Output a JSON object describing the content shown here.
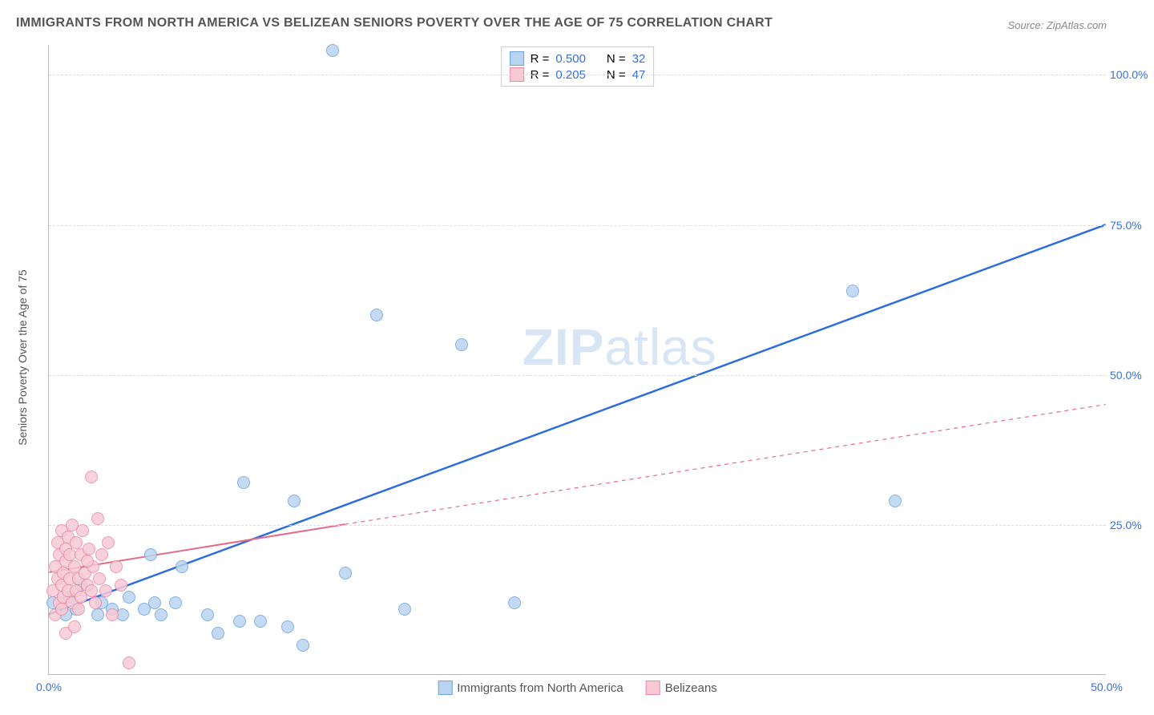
{
  "title": "IMMIGRANTS FROM NORTH AMERICA VS BELIZEAN SENIORS POVERTY OVER THE AGE OF 75 CORRELATION CHART",
  "source": "Source: ZipAtlas.com",
  "watermark_zip": "ZIP",
  "watermark_atlas": "atlas",
  "chart": {
    "type": "scatter",
    "yaxis_label": "Seniors Poverty Over the Age of 75",
    "background_color": "#ffffff",
    "grid_color": "#dddddd",
    "axis_color": "#bbbbbb",
    "xlim": [
      0,
      50
    ],
    "ylim": [
      0,
      105
    ],
    "xticks": [
      {
        "value": 0,
        "label": "0.0%",
        "color": "#3670d6"
      },
      {
        "value": 50,
        "label": "50.0%",
        "color": "#3670d6"
      }
    ],
    "yticks": [
      {
        "value": 25,
        "label": "25.0%",
        "color": "#3670d6"
      },
      {
        "value": 50,
        "label": "50.0%",
        "color": "#3670d6"
      },
      {
        "value": 75,
        "label": "75.0%",
        "color": "#3670d6"
      },
      {
        "value": 100,
        "label": "100.0%",
        "color": "#3670d6"
      }
    ],
    "marker_radius": 8,
    "marker_border_width": 1,
    "series": {
      "blue": {
        "label": "Immigrants from North America",
        "fill_color": "#b9d4f0",
        "stroke_color": "#6ea3e0",
        "trend_color": "#2d6cdf",
        "trend_width": 2.5,
        "trend_dash": "none",
        "trend_extrap_dash": "none",
        "R": "0.500",
        "N": "32",
        "trend_start": {
          "x": 0,
          "y": 10
        },
        "trend_end": {
          "x": 50,
          "y": 75
        },
        "points": [
          {
            "x": 0.2,
            "y": 12
          },
          {
            "x": 0.8,
            "y": 10
          },
          {
            "x": 1.0,
            "y": 13
          },
          {
            "x": 1.3,
            "y": 11
          },
          {
            "x": 1.5,
            "y": 15
          },
          {
            "x": 2.3,
            "y": 10
          },
          {
            "x": 2.5,
            "y": 12
          },
          {
            "x": 3.0,
            "y": 11
          },
          {
            "x": 3.5,
            "y": 10
          },
          {
            "x": 3.8,
            "y": 13
          },
          {
            "x": 4.5,
            "y": 11
          },
          {
            "x": 4.8,
            "y": 20
          },
          {
            "x": 5.0,
            "y": 12
          },
          {
            "x": 5.3,
            "y": 10
          },
          {
            "x": 6.0,
            "y": 12
          },
          {
            "x": 6.3,
            "y": 18
          },
          {
            "x": 7.5,
            "y": 10
          },
          {
            "x": 8.0,
            "y": 7
          },
          {
            "x": 9.0,
            "y": 9
          },
          {
            "x": 9.2,
            "y": 32
          },
          {
            "x": 10.0,
            "y": 9
          },
          {
            "x": 11.3,
            "y": 8
          },
          {
            "x": 11.6,
            "y": 29
          },
          {
            "x": 12.0,
            "y": 5
          },
          {
            "x": 13.4,
            "y": 104
          },
          {
            "x": 14.0,
            "y": 17
          },
          {
            "x": 15.5,
            "y": 60
          },
          {
            "x": 16.8,
            "y": 11
          },
          {
            "x": 19.5,
            "y": 55
          },
          {
            "x": 22.0,
            "y": 12
          },
          {
            "x": 38.0,
            "y": 64
          },
          {
            "x": 40.0,
            "y": 29
          }
        ]
      },
      "pink": {
        "label": "Belizeans",
        "fill_color": "#f6c9d5",
        "stroke_color": "#e98ba5",
        "trend_color": "#e56b8b",
        "trend_width": 2,
        "trend_dash": "none",
        "trend_extrap_dash": "5,5",
        "R": "0.205",
        "N": "47",
        "trend_start": {
          "x": 0,
          "y": 17
        },
        "trend_solid_end": {
          "x": 14,
          "y": 25
        },
        "trend_end": {
          "x": 50,
          "y": 45
        },
        "points": [
          {
            "x": 0.2,
            "y": 14
          },
          {
            "x": 0.3,
            "y": 18
          },
          {
            "x": 0.4,
            "y": 16
          },
          {
            "x": 0.4,
            "y": 22
          },
          {
            "x": 0.5,
            "y": 12
          },
          {
            "x": 0.5,
            "y": 20
          },
          {
            "x": 0.6,
            "y": 15
          },
          {
            "x": 0.6,
            "y": 24
          },
          {
            "x": 0.7,
            "y": 17
          },
          {
            "x": 0.7,
            "y": 13
          },
          {
            "x": 0.8,
            "y": 21
          },
          {
            "x": 0.8,
            "y": 19
          },
          {
            "x": 0.9,
            "y": 14
          },
          {
            "x": 0.9,
            "y": 23
          },
          {
            "x": 1.0,
            "y": 16
          },
          {
            "x": 1.0,
            "y": 20
          },
          {
            "x": 1.1,
            "y": 12
          },
          {
            "x": 1.1,
            "y": 25
          },
          {
            "x": 1.2,
            "y": 18
          },
          {
            "x": 1.3,
            "y": 14
          },
          {
            "x": 1.3,
            "y": 22
          },
          {
            "x": 1.4,
            "y": 16
          },
          {
            "x": 1.5,
            "y": 20
          },
          {
            "x": 1.5,
            "y": 13
          },
          {
            "x": 1.6,
            "y": 24
          },
          {
            "x": 1.7,
            "y": 17
          },
          {
            "x": 1.8,
            "y": 15
          },
          {
            "x": 1.9,
            "y": 21
          },
          {
            "x": 2.0,
            "y": 33
          },
          {
            "x": 2.0,
            "y": 14
          },
          {
            "x": 2.1,
            "y": 18
          },
          {
            "x": 2.2,
            "y": 12
          },
          {
            "x": 2.3,
            "y": 26
          },
          {
            "x": 2.4,
            "y": 16
          },
          {
            "x": 2.5,
            "y": 20
          },
          {
            "x": 2.7,
            "y": 14
          },
          {
            "x": 2.8,
            "y": 22
          },
          {
            "x": 0.8,
            "y": 7
          },
          {
            "x": 3.0,
            "y": 10
          },
          {
            "x": 3.2,
            "y": 18
          },
          {
            "x": 3.4,
            "y": 15
          },
          {
            "x": 3.8,
            "y": 2
          },
          {
            "x": 1.2,
            "y": 8
          },
          {
            "x": 0.3,
            "y": 10
          },
          {
            "x": 0.6,
            "y": 11
          },
          {
            "x": 1.8,
            "y": 19
          },
          {
            "x": 1.4,
            "y": 11
          }
        ]
      }
    },
    "legend_top": {
      "R_label": "R =",
      "N_label": "N =",
      "value_color": "#3670d6",
      "label_color": "#555555"
    },
    "legend_bottom_color": "#555555"
  }
}
